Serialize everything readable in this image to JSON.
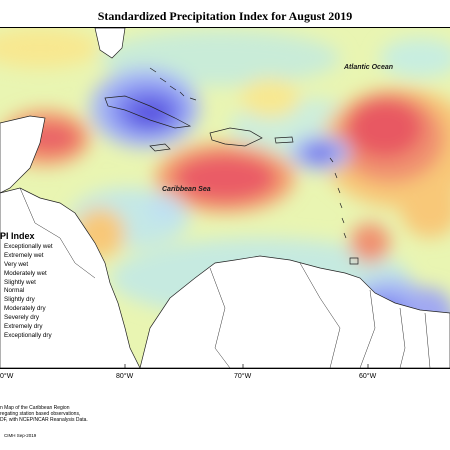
{
  "map": {
    "title": "Standardized Precipitation Index for August 2019",
    "ocean_labels": {
      "atlantic": "Atlantic Ocean",
      "caribbean": "Caribbean Sea"
    },
    "longitude_ticks": [
      "0°W",
      "80°W",
      "70°W",
      "60°W"
    ],
    "legend": {
      "title": "SPI Index",
      "items": [
        {
          "label": "Exceptionally wet",
          "color": "#5a55e0"
        },
        {
          "label": "Extremely wet",
          "color": "#7e86f0"
        },
        {
          "label": "Very wet",
          "color": "#a7b8f5"
        },
        {
          "label": "Moderately wet",
          "color": "#bfe0f2"
        },
        {
          "label": "Slightly wet",
          "color": "#c8eee0"
        },
        {
          "label": "Normal",
          "color": "#e6f5a8"
        },
        {
          "label": "Slightly dry",
          "color": "#f8e890"
        },
        {
          "label": "Moderately dry",
          "color": "#f8c878"
        },
        {
          "label": "Severely dry",
          "color": "#f4a070"
        },
        {
          "label": "Extremely dry",
          "color": "#ef7070"
        },
        {
          "label": "Exceptionally dry",
          "color": "#e85060"
        }
      ]
    },
    "description_lines": [
      "n Map of the Caribbean Region",
      "regating station based observations,",
      "DF, with NCEP/NCAR Reanalysis Data."
    ],
    "credit": "CIMH Sep-2019"
  }
}
